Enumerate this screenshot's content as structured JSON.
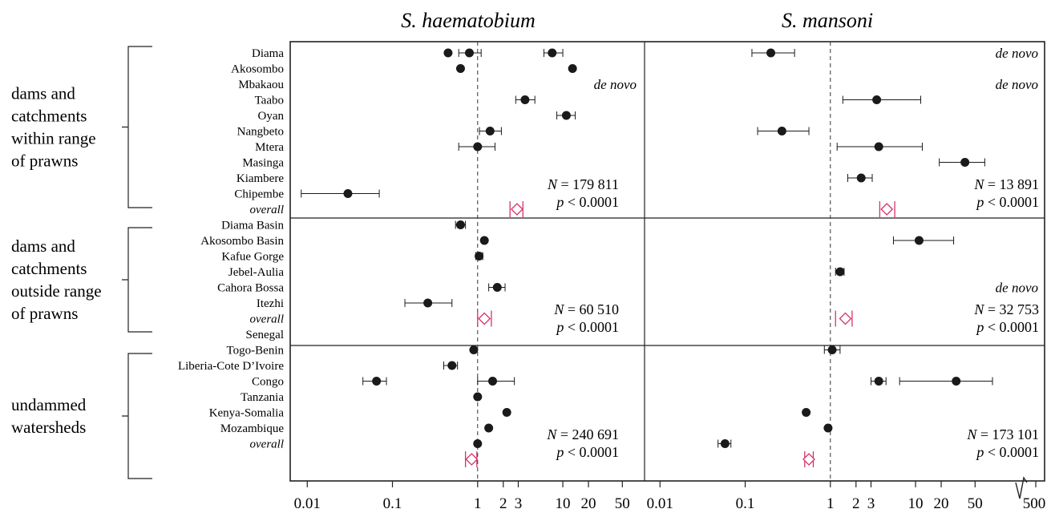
{
  "chart_data": {
    "type": "forest",
    "scale": "log",
    "panels": [
      {
        "id": "haem",
        "title": "S. haematobium"
      },
      {
        "id": "mans",
        "title": "S. mansoni"
      }
    ],
    "xticks": [
      {
        "value": 0.01,
        "label": "0.01"
      },
      {
        "value": 0.1,
        "label": "0.1"
      },
      {
        "value": 1,
        "label": "1"
      },
      {
        "value": 2,
        "label": "2"
      },
      {
        "value": 3,
        "label": "3"
      },
      {
        "value": 10,
        "label": "10"
      },
      {
        "value": 20,
        "label": "20"
      },
      {
        "value": 50,
        "label": "50"
      }
    ],
    "mans_extra_tick": {
      "value": 500,
      "label": "500"
    },
    "xlim": [
      0.0075,
      80
    ],
    "groups": [
      {
        "label_lines": [
          "dams and",
          "catchments",
          "within range",
          "of prawns"
        ],
        "rows": [
          "Diama",
          "Akosombo",
          "Mbakaou",
          "Taabo",
          "Oyan",
          "Nangbeto",
          "Mtera",
          "Masinga",
          "Kiambere",
          "Chipembe",
          "overall"
        ],
        "stats": {
          "haem": {
            "N": "179 811",
            "p": "< 0.0001"
          },
          "mans": {
            "N": "13 891",
            "p": "< 0.0001"
          }
        }
      },
      {
        "label_lines": [
          "dams and",
          "catchments",
          "outside range",
          "of prawns"
        ],
        "rows": [
          "Diama Basin",
          "Akosombo Basin",
          "Kafue Gorge",
          "Jebel-Aulia",
          "Cahora Bossa",
          "Itezhi",
          "overall"
        ],
        "stats": {
          "haem": {
            "N": "60 510",
            "p": "< 0.0001"
          },
          "mans": {
            "N": "32 753",
            "p": "< 0.0001"
          }
        }
      },
      {
        "label_lines": [
          "undammed",
          "watersheds"
        ],
        "rows": [
          "Senegal",
          "Togo-Benin",
          "Liberia-Cote D’Ivoire",
          "Congo",
          "Tanzania",
          "Kenya-Somalia",
          "Mozambique",
          "overall"
        ],
        "stats": {
          "haem": {
            "N": "240 691",
            "p": "< 0.0001"
          },
          "mans": {
            "N": "173 101",
            "p": "< 0.0001"
          }
        }
      }
    ],
    "denovo_label": "de novo",
    "denovo": [
      {
        "panel": "haem",
        "row": 2
      },
      {
        "panel": "mans",
        "row": 0
      },
      {
        "panel": "mans",
        "row": 2
      },
      {
        "panel": "mans",
        "row": 15
      }
    ],
    "points": [
      {
        "panel": "haem",
        "row": 0,
        "est": 0.45,
        "lo": 0.45,
        "hi": 0.45
      },
      {
        "panel": "haem",
        "row": 0,
        "est": 0.8,
        "lo": 0.6,
        "hi": 1.1
      },
      {
        "panel": "haem",
        "row": 0,
        "est": 7.5,
        "lo": 6.0,
        "hi": 10.0
      },
      {
        "panel": "haem",
        "row": 1,
        "est": 0.63,
        "lo": 0.63,
        "hi": 0.63
      },
      {
        "panel": "haem",
        "row": 1,
        "est": 13.0,
        "lo": 13.0,
        "hi": 13.0
      },
      {
        "panel": "haem",
        "row": 3,
        "est": 3.6,
        "lo": 2.8,
        "hi": 4.7
      },
      {
        "panel": "haem",
        "row": 4,
        "est": 11.0,
        "lo": 8.5,
        "hi": 14.0
      },
      {
        "panel": "haem",
        "row": 5,
        "est": 1.4,
        "lo": 1.05,
        "hi": 1.9
      },
      {
        "panel": "haem",
        "row": 6,
        "est": 1.0,
        "lo": 0.6,
        "hi": 1.6
      },
      {
        "panel": "haem",
        "row": 9,
        "est": 0.03,
        "lo": 0.0085,
        "hi": 0.07
      },
      {
        "panel": "haem",
        "row": 11,
        "est": 0.63,
        "lo": 0.55,
        "hi": 0.72
      },
      {
        "panel": "haem",
        "row": 12,
        "est": 1.2,
        "lo": 1.2,
        "hi": 1.2
      },
      {
        "panel": "haem",
        "row": 13,
        "est": 1.04,
        "lo": 0.95,
        "hi": 1.15
      },
      {
        "panel": "haem",
        "row": 15,
        "est": 1.7,
        "lo": 1.35,
        "hi": 2.1
      },
      {
        "panel": "haem",
        "row": 16,
        "est": 0.26,
        "lo": 0.14,
        "hi": 0.5
      },
      {
        "panel": "haem",
        "row": 19,
        "est": 0.9,
        "lo": 0.9,
        "hi": 0.9
      },
      {
        "panel": "haem",
        "row": 20,
        "est": 0.5,
        "lo": 0.4,
        "hi": 0.58
      },
      {
        "panel": "haem",
        "row": 21,
        "est": 0.065,
        "lo": 0.045,
        "hi": 0.085
      },
      {
        "panel": "haem",
        "row": 21,
        "est": 1.5,
        "lo": 1.0,
        "hi": 2.7
      },
      {
        "panel": "haem",
        "row": 22,
        "est": 1.0,
        "lo": 1.0,
        "hi": 1.0
      },
      {
        "panel": "haem",
        "row": 23,
        "est": 2.2,
        "lo": 2.2,
        "hi": 2.2
      },
      {
        "panel": "haem",
        "row": 24,
        "est": 1.35,
        "lo": 1.35,
        "hi": 1.35
      },
      {
        "panel": "haem",
        "row": 25,
        "est": 1.0,
        "lo": 1.0,
        "hi": 1.0
      },
      {
        "panel": "mans",
        "row": 0,
        "est": 0.2,
        "lo": 0.12,
        "hi": 0.38
      },
      {
        "panel": "mans",
        "row": 3,
        "est": 3.5,
        "lo": 1.4,
        "hi": 11.5
      },
      {
        "panel": "mans",
        "row": 5,
        "est": 0.27,
        "lo": 0.14,
        "hi": 0.56
      },
      {
        "panel": "mans",
        "row": 6,
        "est": 3.7,
        "lo": 1.2,
        "hi": 12.0
      },
      {
        "panel": "mans",
        "row": 7,
        "est": 38.0,
        "lo": 19.0,
        "hi": 65.0
      },
      {
        "panel": "mans",
        "row": 8,
        "est": 2.3,
        "lo": 1.6,
        "hi": 3.1
      },
      {
        "panel": "mans",
        "row": 12,
        "est": 11.0,
        "lo": 5.5,
        "hi": 28.0
      },
      {
        "panel": "mans",
        "row": 14,
        "est": 1.3,
        "lo": 1.15,
        "hi": 1.45
      },
      {
        "panel": "mans",
        "row": 19,
        "est": 1.05,
        "lo": 0.85,
        "hi": 1.3
      },
      {
        "panel": "mans",
        "row": 21,
        "est": 3.7,
        "lo": 3.0,
        "hi": 4.5
      },
      {
        "panel": "mans",
        "row": 21,
        "est": 30.0,
        "lo": 6.5,
        "hi": 80.0
      },
      {
        "panel": "mans",
        "row": 23,
        "est": 0.52,
        "lo": 0.52,
        "hi": 0.52
      },
      {
        "panel": "mans",
        "row": 24,
        "est": 0.94,
        "lo": 0.94,
        "hi": 0.94
      },
      {
        "panel": "mans",
        "row": 25,
        "est": 0.058,
        "lo": 0.048,
        "hi": 0.068
      }
    ],
    "overall": [
      {
        "panel": "haem",
        "row": 10,
        "est": 2.9,
        "lo": 2.4,
        "hi": 3.4
      },
      {
        "panel": "haem",
        "row": 17,
        "est": 1.2,
        "lo": 1.0,
        "hi": 1.45
      },
      {
        "panel": "haem",
        "row": 26,
        "est": 0.85,
        "lo": 0.72,
        "hi": 0.98
      },
      {
        "panel": "mans",
        "row": 10,
        "est": 4.6,
        "lo": 3.8,
        "hi": 5.7
      },
      {
        "panel": "mans",
        "row": 17,
        "est": 1.5,
        "lo": 1.15,
        "hi": 1.8
      },
      {
        "panel": "mans",
        "row": 26,
        "est": 0.56,
        "lo": 0.5,
        "hi": 0.63
      }
    ],
    "colors": {
      "points": "#1a1a1a",
      "overall": "#d6336c",
      "reference": "#333333"
    }
  }
}
